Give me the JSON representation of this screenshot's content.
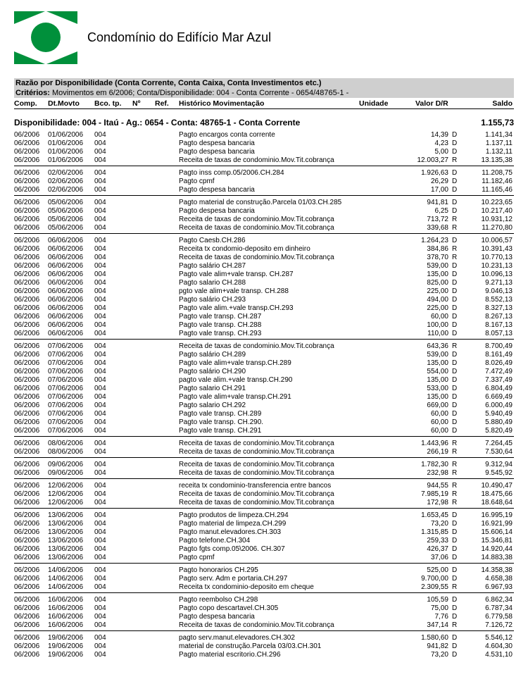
{
  "header": {
    "title": "Condomínio do Edifício Mar Azul"
  },
  "bar1": "Razão por Disponibilidade (Conta Corrente, Conta Caixa, Conta Investimentos etc.)",
  "bar2_label": "Critérios:",
  "bar2_value": " Movimentos em 6/2006;  Conta/Disponibilidade: 004 - Conta Corrente - 0654/48765-1 -",
  "columns": {
    "comp": "Comp.",
    "dt": "Dt.Movto",
    "bcotp": "Bco. tp.",
    "no": "Nº",
    "ref": "Ref.",
    "hist": "Histórico Movimentação",
    "uni": "Unidade",
    "val": "Valor D/R",
    "saldo": "Saldo"
  },
  "group_header": "Disponibilidade: 004 - Itaú - Ag.: 0654 - Conta: 48765-1 - Conta Corrente",
  "group_saldo": "1.155,73",
  "blocks": [
    {
      "rows": [
        {
          "comp": "06/2006",
          "dt": "01/06/2006",
          "bco": "004",
          "hist": "Pagto encargos conta corrente",
          "val": "14,39",
          "dr": "D",
          "saldo": "1.141,34"
        },
        {
          "comp": "06/2006",
          "dt": "01/06/2006",
          "bco": "004",
          "hist": "Pagto despesa bancaria",
          "val": "4,23",
          "dr": "D",
          "saldo": "1.137,11"
        },
        {
          "comp": "06/2006",
          "dt": "01/06/2006",
          "bco": "004",
          "hist": "Pagto despesa bancaria",
          "val": "5,00",
          "dr": "D",
          "saldo": "1.132,11"
        },
        {
          "comp": "06/2006",
          "dt": "01/06/2006",
          "bco": "004",
          "hist": "Receita de taxas de condominio.Mov.Tit.cobrança",
          "val": "12.003,27",
          "dr": "R",
          "saldo": "13.135,38"
        }
      ]
    },
    {
      "rows": [
        {
          "comp": "06/2006",
          "dt": "02/06/2006",
          "bco": "004",
          "hist": "Pagto inss comp.05/2006.CH.284",
          "val": "1.926,63",
          "dr": "D",
          "saldo": "11.208,75"
        },
        {
          "comp": "06/2006",
          "dt": "02/06/2006",
          "bco": "004",
          "hist": "Pagto cpmf",
          "val": "26,29",
          "dr": "D",
          "saldo": "11.182,46"
        },
        {
          "comp": "06/2006",
          "dt": "02/06/2006",
          "bco": "004",
          "hist": "Pagto despesa bancaria",
          "val": "17,00",
          "dr": "D",
          "saldo": "11.165,46"
        }
      ]
    },
    {
      "rows": [
        {
          "comp": "06/2006",
          "dt": "05/06/2006",
          "bco": "004",
          "hist": "Pagto material de construção.Parcela 01/03.CH.285",
          "val": "941,81",
          "dr": "D",
          "saldo": "10.223,65"
        },
        {
          "comp": "06/2006",
          "dt": "05/06/2006",
          "bco": "004",
          "hist": "Pagto despesa bancaria",
          "val": "6,25",
          "dr": "D",
          "saldo": "10.217,40"
        },
        {
          "comp": "06/2006",
          "dt": "05/06/2006",
          "bco": "004",
          "hist": "Receita de taxas de condominio.Mov.Tit.cobrança",
          "val": "713,72",
          "dr": "R",
          "saldo": "10.931,12"
        },
        {
          "comp": "06/2006",
          "dt": "05/06/2006",
          "bco": "004",
          "hist": "Receita de taxas de condominio.Mov.Tit.cobrança",
          "val": "339,68",
          "dr": "R",
          "saldo": "11.270,80"
        }
      ]
    },
    {
      "rows": [
        {
          "comp": "06/2006",
          "dt": "06/06/2006",
          "bco": "004",
          "hist": "Pagto Caesb.CH.286",
          "val": "1.264,23",
          "dr": "D",
          "saldo": "10.006,57"
        },
        {
          "comp": "06/2006",
          "dt": "06/06/2006",
          "bco": "004",
          "hist": "Receita tx condomio-deposito em dinheiro",
          "val": "384,86",
          "dr": "R",
          "saldo": "10.391,43"
        },
        {
          "comp": "06/2006",
          "dt": "06/06/2006",
          "bco": "004",
          "hist": "Receita de taxas de condominio.Mov.Tit.cobrança",
          "val": "378,70",
          "dr": "R",
          "saldo": "10.770,13"
        },
        {
          "comp": "06/2006",
          "dt": "06/06/2006",
          "bco": "004",
          "hist": "Pagto salário CH.287",
          "val": "539,00",
          "dr": "D",
          "saldo": "10.231,13"
        },
        {
          "comp": "06/2006",
          "dt": "06/06/2006",
          "bco": "004",
          "hist": "Pagto vale alim+vale transp. CH.287",
          "val": "135,00",
          "dr": "D",
          "saldo": "10.096,13"
        },
        {
          "comp": "06/2006",
          "dt": "06/06/2006",
          "bco": "004",
          "hist": "Pagto salario CH.288",
          "val": "825,00",
          "dr": "D",
          "saldo": "9.271,13"
        },
        {
          "comp": "06/2006",
          "dt": "06/06/2006",
          "bco": "004",
          "hist": "pgto vale alim+vale transp. CH.288",
          "val": "225,00",
          "dr": "D",
          "saldo": "9.046,13"
        },
        {
          "comp": "06/2006",
          "dt": "06/06/2006",
          "bco": "004",
          "hist": "Pagto salário CH.293",
          "val": "494,00",
          "dr": "D",
          "saldo": "8.552,13"
        },
        {
          "comp": "06/2006",
          "dt": "06/06/2006",
          "bco": "004",
          "hist": "Pagto vale alim.+vale transp.CH.293",
          "val": "225,00",
          "dr": "D",
          "saldo": "8.327,13"
        },
        {
          "comp": "06/2006",
          "dt": "06/06/2006",
          "bco": "004",
          "hist": "Pagto vale transp. CH.287",
          "val": "60,00",
          "dr": "D",
          "saldo": "8.267,13"
        },
        {
          "comp": "06/2006",
          "dt": "06/06/2006",
          "bco": "004",
          "hist": "Pagto vale transp. CH.288",
          "val": "100,00",
          "dr": "D",
          "saldo": "8.167,13"
        },
        {
          "comp": "06/2006",
          "dt": "06/06/2006",
          "bco": "004",
          "hist": "Pagto vale transp. CH.293",
          "val": "110,00",
          "dr": "D",
          "saldo": "8.057,13"
        }
      ]
    },
    {
      "rows": [
        {
          "comp": "06/2006",
          "dt": "07/06/2006",
          "bco": "004",
          "hist": "Receita de taxas de condominio.Mov.Tit.cobrança",
          "val": "643,36",
          "dr": "R",
          "saldo": "8.700,49"
        },
        {
          "comp": "06/2006",
          "dt": "07/06/2006",
          "bco": "004",
          "hist": "Pagto salário CH.289",
          "val": "539,00",
          "dr": "D",
          "saldo": "8.161,49"
        },
        {
          "comp": "06/2006",
          "dt": "07/06/2006",
          "bco": "004",
          "hist": "Pagto vale alim+vale transp.CH.289",
          "val": "135,00",
          "dr": "D",
          "saldo": "8.026,49"
        },
        {
          "comp": "06/2006",
          "dt": "07/06/2006",
          "bco": "004",
          "hist": "Pagto salário CH.290",
          "val": "554,00",
          "dr": "D",
          "saldo": "7.472,49"
        },
        {
          "comp": "06/2006",
          "dt": "07/06/2006",
          "bco": "004",
          "hist": "pagto vale alim.+vale transp.CH.290",
          "val": "135,00",
          "dr": "D",
          "saldo": "7.337,49"
        },
        {
          "comp": "06/2006",
          "dt": "07/06/2006",
          "bco": "004",
          "hist": "Pagto salario CH.291",
          "val": "533,00",
          "dr": "D",
          "saldo": "6.804,49"
        },
        {
          "comp": "06/2006",
          "dt": "07/06/2006",
          "bco": "004",
          "hist": "Pagto vale alim+vale transp.CH.291",
          "val": "135,00",
          "dr": "D",
          "saldo": "6.669,49"
        },
        {
          "comp": "06/2006",
          "dt": "07/06/2006",
          "bco": "004",
          "hist": "Pagto salario CH.292",
          "val": "669,00",
          "dr": "D",
          "saldo": "6.000,49"
        },
        {
          "comp": "06/2006",
          "dt": "07/06/2006",
          "bco": "004",
          "hist": "Pagto vale transp. CH.289",
          "val": "60,00",
          "dr": "D",
          "saldo": "5.940,49"
        },
        {
          "comp": "06/2006",
          "dt": "07/06/2006",
          "bco": "004",
          "hist": "Pagto vale transp. CH.290.",
          "val": "60,00",
          "dr": "D",
          "saldo": "5.880,49"
        },
        {
          "comp": "06/2006",
          "dt": "07/06/2006",
          "bco": "004",
          "hist": "Pagto vale transp. CH.291",
          "val": "60,00",
          "dr": "D",
          "saldo": "5.820,49"
        }
      ]
    },
    {
      "rows": [
        {
          "comp": "06/2006",
          "dt": "08/06/2006",
          "bco": "004",
          "hist": "Receita de taxas de condominio.Mov.Tit.cobrança",
          "val": "1.443,96",
          "dr": "R",
          "saldo": "7.264,45"
        },
        {
          "comp": "06/2006",
          "dt": "08/06/2006",
          "bco": "004",
          "hist": "Receita de taxas de condominio.Mov.Tit.cobrança",
          "val": "266,19",
          "dr": "R",
          "saldo": "7.530,64"
        }
      ]
    },
    {
      "rows": [
        {
          "comp": "06/2006",
          "dt": "09/06/2006",
          "bco": "004",
          "hist": "Receita de taxas de condominio.Mov.Tit.cobrança",
          "val": "1.782,30",
          "dr": "R",
          "saldo": "9.312,94"
        },
        {
          "comp": "06/2006",
          "dt": "09/06/2006",
          "bco": "004",
          "hist": "Receita de taxas de condominio.Mov.Tit.cobrança",
          "val": "232,98",
          "dr": "R",
          "saldo": "9.545,92"
        }
      ]
    },
    {
      "rows": [
        {
          "comp": "06/2006",
          "dt": "12/06/2006",
          "bco": "004",
          "hist": "receita tx condominio-transferencia entre bancos",
          "val": "944,55",
          "dr": "R",
          "saldo": "10.490,47"
        },
        {
          "comp": "06/2006",
          "dt": "12/06/2006",
          "bco": "004",
          "hist": "Receita de taxas de condominio.Mov.Tit.cobrança",
          "val": "7.985,19",
          "dr": "R",
          "saldo": "18.475,66"
        },
        {
          "comp": "06/2006",
          "dt": "12/06/2006",
          "bco": "004",
          "hist": "Receita de taxas de condominio.Mov.Tit.cobrança",
          "val": "172,98",
          "dr": "R",
          "saldo": "18.648,64"
        }
      ]
    },
    {
      "rows": [
        {
          "comp": "06/2006",
          "dt": "13/06/2006",
          "bco": "004",
          "hist": "Pagto produtos de limpeza.CH.294",
          "val": "1.653,45",
          "dr": "D",
          "saldo": "16.995,19"
        },
        {
          "comp": "06/2006",
          "dt": "13/06/2006",
          "bco": "004",
          "hist": "Pagto material de limpeza.CH.299",
          "val": "73,20",
          "dr": "D",
          "saldo": "16.921,99"
        },
        {
          "comp": "06/2006",
          "dt": "13/06/2006",
          "bco": "004",
          "hist": "Pagto manut.elevadores.CH.303",
          "val": "1.315,85",
          "dr": "D",
          "saldo": "15.606,14"
        },
        {
          "comp": "06/2006",
          "dt": "13/06/2006",
          "bco": "004",
          "hist": "Pagto telefone.CH.304",
          "val": "259,33",
          "dr": "D",
          "saldo": "15.346,81"
        },
        {
          "comp": "06/2006",
          "dt": "13/06/2006",
          "bco": "004",
          "hist": "Pagto fgts comp.05\\2006. CH.307",
          "val": "426,37",
          "dr": "D",
          "saldo": "14.920,44"
        },
        {
          "comp": "06/2006",
          "dt": "13/06/2006",
          "bco": "004",
          "hist": "Pagto cpmf",
          "val": "37,06",
          "dr": "D",
          "saldo": "14.883,38"
        }
      ]
    },
    {
      "rows": [
        {
          "comp": "06/2006",
          "dt": "14/06/2006",
          "bco": "004",
          "hist": "Pagto honorarios CH.295",
          "val": "525,00",
          "dr": "D",
          "saldo": "14.358,38"
        },
        {
          "comp": "06/2006",
          "dt": "14/06/2006",
          "bco": "004",
          "hist": "Pagto serv. Adm e portaria.CH.297",
          "val": "9.700,00",
          "dr": "D",
          "saldo": "4.658,38"
        },
        {
          "comp": "06/2006",
          "dt": "14/06/2006",
          "bco": "004",
          "hist": "Receita tx condominio-deposito em cheque",
          "val": "2.309,55",
          "dr": "R",
          "saldo": "6.967,93"
        }
      ]
    },
    {
      "rows": [
        {
          "comp": "06/2006",
          "dt": "16/06/2006",
          "bco": "004",
          "hist": "Pagto reembolso CH.298",
          "val": "105,59",
          "dr": "D",
          "saldo": "6.862,34"
        },
        {
          "comp": "06/2006",
          "dt": "16/06/2006",
          "bco": "004",
          "hist": "Pagto copo descartavel.CH.305",
          "val": "75,00",
          "dr": "D",
          "saldo": "6.787,34"
        },
        {
          "comp": "06/2006",
          "dt": "16/06/2006",
          "bco": "004",
          "hist": "Pagto despesa bancaria",
          "val": "7,76",
          "dr": "D",
          "saldo": "6.779,58"
        },
        {
          "comp": "06/2006",
          "dt": "16/06/2006",
          "bco": "004",
          "hist": "Receita de taxas de condominio.Mov.Tit.cobrança",
          "val": "347,14",
          "dr": "R",
          "saldo": "7.126,72"
        }
      ]
    },
    {
      "rows": [
        {
          "comp": "06/2006",
          "dt": "19/06/2006",
          "bco": "004",
          "hist": "pagto serv.manut.elevadores.CH.302",
          "val": "1.580,60",
          "dr": "D",
          "saldo": "5.546,12"
        },
        {
          "comp": "06/2006",
          "dt": "19/06/2006",
          "bco": "004",
          "hist": "material de construção.Parcela 03/03.CH.301",
          "val": "941,82",
          "dr": "D",
          "saldo": "4.604,30"
        },
        {
          "comp": "06/2006",
          "dt": "19/06/2006",
          "bco": "004",
          "hist": "Pagto material escritorio.CH.296",
          "val": "73,20",
          "dr": "D",
          "saldo": "4.531,10"
        }
      ]
    }
  ]
}
